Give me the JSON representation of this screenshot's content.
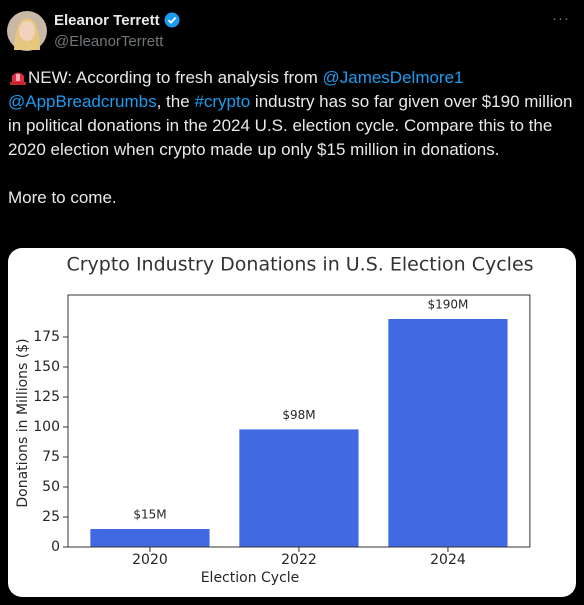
{
  "tweet": {
    "author_name": "Eleanor Terrett",
    "handle": "@EleanorTerrett",
    "more": "···",
    "text": [
      "NEW: According to fresh analysis from",
      "@JamesDelmore1",
      "@AppBreadcrumbs",
      ", the",
      "#crypto",
      "industry has so far given over $190 million in political donations in the 2024 U.S. election cycle. Compare this to the 2020 election when crypto made up only $15 million in donations."
    ],
    "footer_text": "More to come."
  },
  "chart_data": {
    "type": "bar",
    "title": "Crypto Industry Donations in U.S. Election Cycles",
    "x_label": "Election Cycle",
    "y_label": "Donations in Millions ($)",
    "categories": [
      "2020",
      "2022",
      "2024"
    ],
    "values": [
      15,
      98,
      190
    ],
    "value_labels": [
      "$15M",
      "$98M",
      "$190M"
    ],
    "color": "#4169e1",
    "ylim": [
      0,
      210
    ],
    "yticks": [
      0,
      25,
      50,
      75,
      100,
      125,
      150,
      175
    ]
  }
}
